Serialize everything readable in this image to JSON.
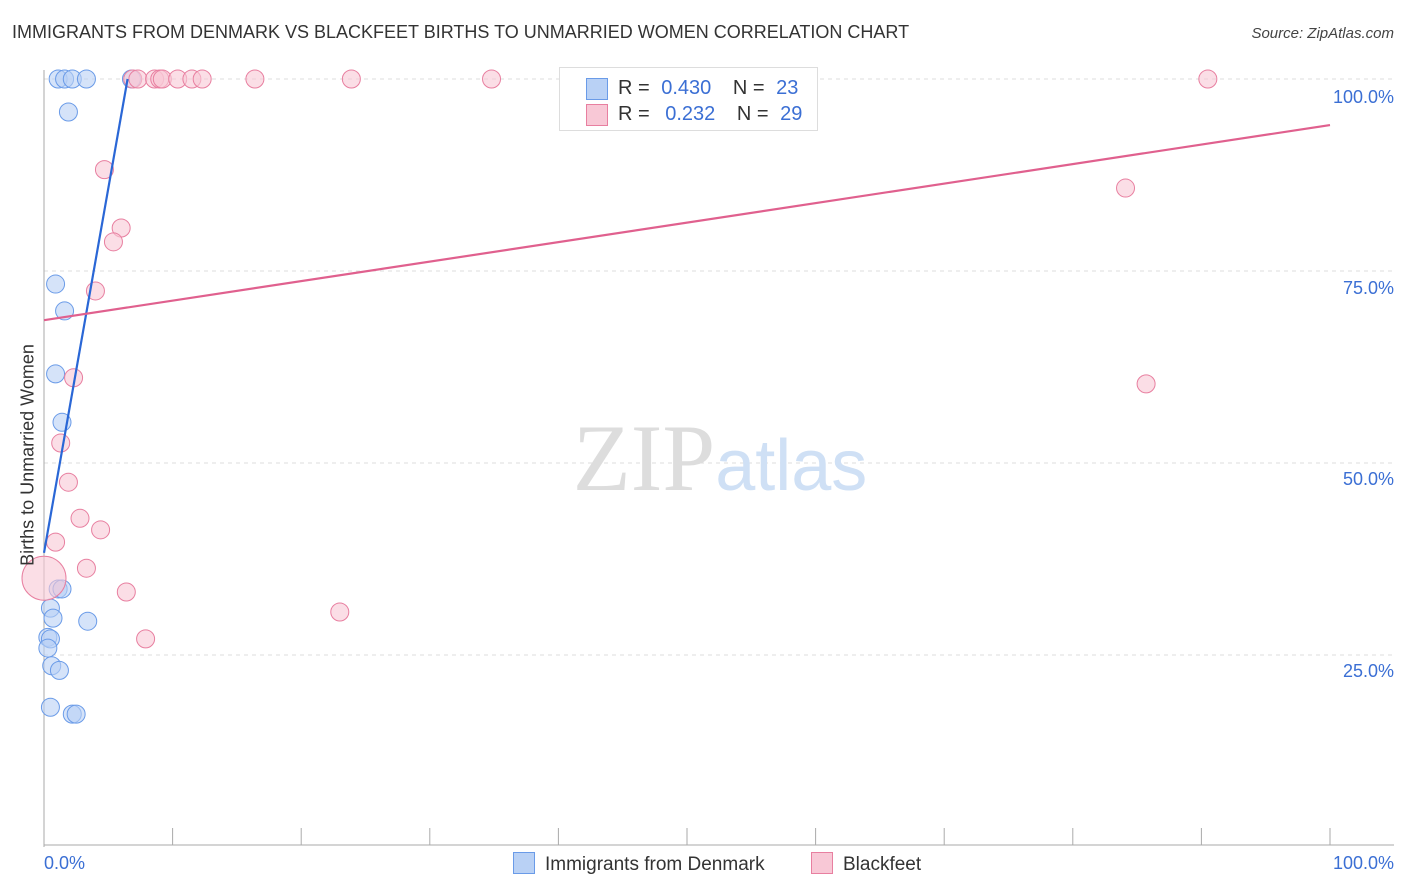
{
  "chart_data": {
    "type": "scatter",
    "title": "IMMIGRANTS FROM DENMARK VS BLACKFEET BIRTHS TO UNMARRIED WOMEN CORRELATION CHART",
    "source": "Source: ZipAtlas.com",
    "xlabel": "",
    "ylabel": "Births to Unmarried Women",
    "xlim": [
      0,
      100
    ],
    "ylim": [
      0,
      100
    ],
    "x_tick_labels": [
      "0.0%",
      "100.0%"
    ],
    "y_tick_labels": [
      "100.0%",
      "75.0%",
      "50.0%",
      "25.0%"
    ],
    "y_ticks": [
      100,
      75,
      50,
      25
    ],
    "watermark": "ZIPatlas",
    "series": [
      {
        "name": "Immigrants from Denmark",
        "color": "#6a9be8",
        "fill": "#b9d1f5",
        "R": "0.430",
        "N": "23",
        "trend": [
          [
            0,
            38.3
          ],
          [
            6.5,
            100
          ]
        ],
        "points": [
          [
            1.1,
            100
          ],
          [
            1.6,
            100
          ],
          [
            2.2,
            100
          ],
          [
            3.3,
            100
          ],
          [
            6.8,
            100
          ],
          [
            1.9,
            95.7
          ],
          [
            0.9,
            73.3
          ],
          [
            1.6,
            69.8
          ],
          [
            0.9,
            61.6
          ],
          [
            1.4,
            55.3
          ],
          [
            1.1,
            33.6
          ],
          [
            1.4,
            33.6
          ],
          [
            0.5,
            31.1
          ],
          [
            0.7,
            29.8
          ],
          [
            3.4,
            29.4
          ],
          [
            0.3,
            27.3
          ],
          [
            0.5,
            27.1
          ],
          [
            0.3,
            25.9
          ],
          [
            0.6,
            23.6
          ],
          [
            1.2,
            23.0
          ],
          [
            0.5,
            18.2
          ],
          [
            2.2,
            17.3
          ],
          [
            2.5,
            17.3
          ]
        ]
      },
      {
        "name": "Blackfeet",
        "color": "#e87fa0",
        "fill": "#f8c8d6",
        "R": "0.232",
        "N": "29",
        "trend": [
          [
            0,
            68.6
          ],
          [
            100,
            94.0
          ]
        ],
        "points": [
          [
            6.9,
            100
          ],
          [
            7.3,
            100
          ],
          [
            8.6,
            100
          ],
          [
            9.0,
            100
          ],
          [
            9.2,
            100
          ],
          [
            10.4,
            100
          ],
          [
            11.5,
            100
          ],
          [
            12.3,
            100
          ],
          [
            16.4,
            100
          ],
          [
            23.9,
            100
          ],
          [
            34.8,
            100
          ],
          [
            90.5,
            100
          ],
          [
            4.7,
            88.2
          ],
          [
            6.0,
            80.6
          ],
          [
            5.4,
            78.8
          ],
          [
            4.0,
            72.4
          ],
          [
            84.1,
            85.8
          ],
          [
            2.3,
            61.1
          ],
          [
            85.7,
            60.3
          ],
          [
            1.3,
            52.6
          ],
          [
            1.9,
            47.5
          ],
          [
            2.8,
            42.8
          ],
          [
            4.4,
            41.3
          ],
          [
            0.9,
            39.7
          ],
          [
            3.3,
            36.3
          ],
          [
            0,
            35.0
          ],
          [
            6.4,
            33.2
          ],
          [
            23.0,
            30.6
          ],
          [
            7.9,
            27.1
          ]
        ]
      }
    ]
  },
  "legend": {
    "r_label": "R =",
    "n_label": "N ="
  }
}
